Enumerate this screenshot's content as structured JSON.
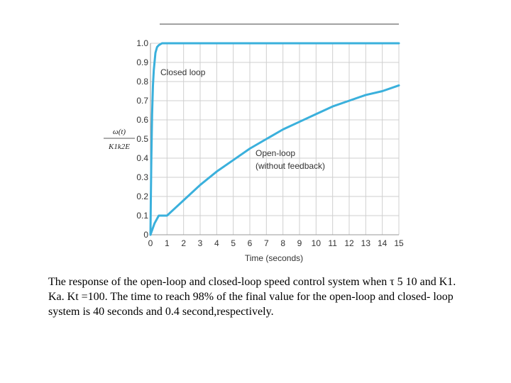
{
  "chart_data": {
    "type": "line",
    "xlabel": "Time (seconds)",
    "ylabel_numerator": "ω(t)",
    "ylabel_denominator": "K1k2E",
    "x_ticks": [
      "0",
      "1",
      "2",
      "3",
      "4",
      "5",
      "6",
      "7",
      "8",
      "9",
      "10",
      "11",
      "12",
      "13",
      "14",
      "15"
    ],
    "y_ticks": [
      "0",
      "0.1",
      "0.2",
      "0.3",
      "0.4",
      "0.5",
      "0.6",
      "0.7",
      "0.8",
      "0.9",
      "1.0"
    ],
    "xlim": [
      0,
      15
    ],
    "ylim": [
      0,
      1.0
    ],
    "grid": true,
    "color": "#3ab0dc",
    "series": [
      {
        "name": "Closed loop",
        "x": [
          0,
          0.02,
          0.05,
          0.1,
          0.15,
          0.2,
          0.3,
          0.4,
          0.5,
          0.7,
          1,
          2,
          5,
          10,
          15
        ],
        "y": [
          0,
          0.18,
          0.39,
          0.63,
          0.78,
          0.86,
          0.95,
          0.98,
          0.99,
          1.0,
          1.0,
          1.0,
          1.0,
          1.0,
          1.0
        ]
      },
      {
        "name": "Open-loop",
        "note": "(without feedback)",
        "x": [
          0,
          0.25,
          0.5,
          1,
          1.5,
          2,
          3,
          4,
          5,
          6,
          7,
          8,
          9,
          10,
          11,
          12,
          13,
          14,
          15
        ],
        "y": [
          0,
          0.06,
          0.1,
          0.1,
          0.14,
          0.18,
          0.26,
          0.33,
          0.39,
          0.45,
          0.5,
          0.55,
          0.59,
          0.63,
          0.67,
          0.7,
          0.73,
          0.75,
          0.78
        ]
      }
    ]
  },
  "caption": "The response of the open-loop and closed-loop speed control system when τ 5 10 and K1. Ka. Kt =100. The time to reach 98% of the final value for the open-loop and closed- loop system is 40 seconds and 0.4 second,respectively."
}
